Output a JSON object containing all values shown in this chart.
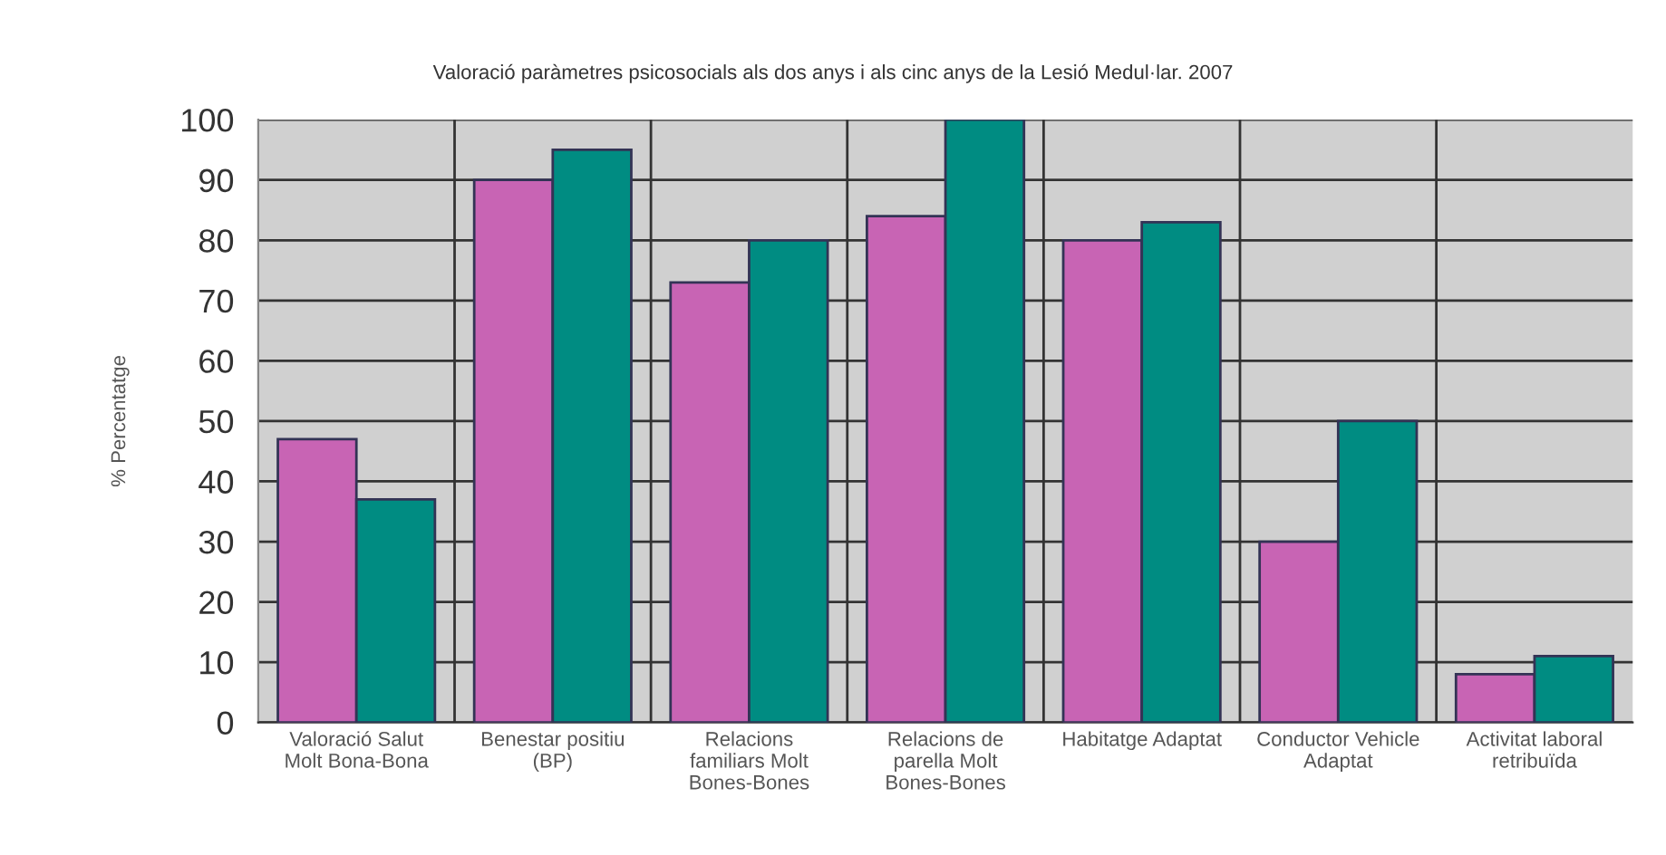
{
  "chart_data": {
    "type": "bar",
    "title": "Valoració paràmetres psicosocials als dos anys i als cinc anys de la Lesió Medul·lar. 2007",
    "ylabel": "% Percentatge",
    "categories": [
      "Valoració Salut Molt Bona-Bona",
      "Benestar positiu (BP)",
      "Relacions familiars Molt Bones-Bones",
      "Relacions de parella Molt Bones-Bones",
      "Habitatge Adaptat",
      "Conductor Vehicle Adaptat",
      "Activitat laboral retribuïda"
    ],
    "series": [
      {
        "color": "#c864b4",
        "values": [
          47,
          90,
          73,
          84,
          80,
          30,
          8
        ]
      },
      {
        "color": "#008c82",
        "values": [
          37,
          95,
          80,
          100,
          83,
          50,
          11
        ]
      }
    ],
    "ylim": [
      0,
      100
    ],
    "yticks": [
      0,
      10,
      20,
      30,
      40,
      50,
      60,
      70,
      80,
      90,
      100
    ],
    "grid": true,
    "legend": false
  }
}
